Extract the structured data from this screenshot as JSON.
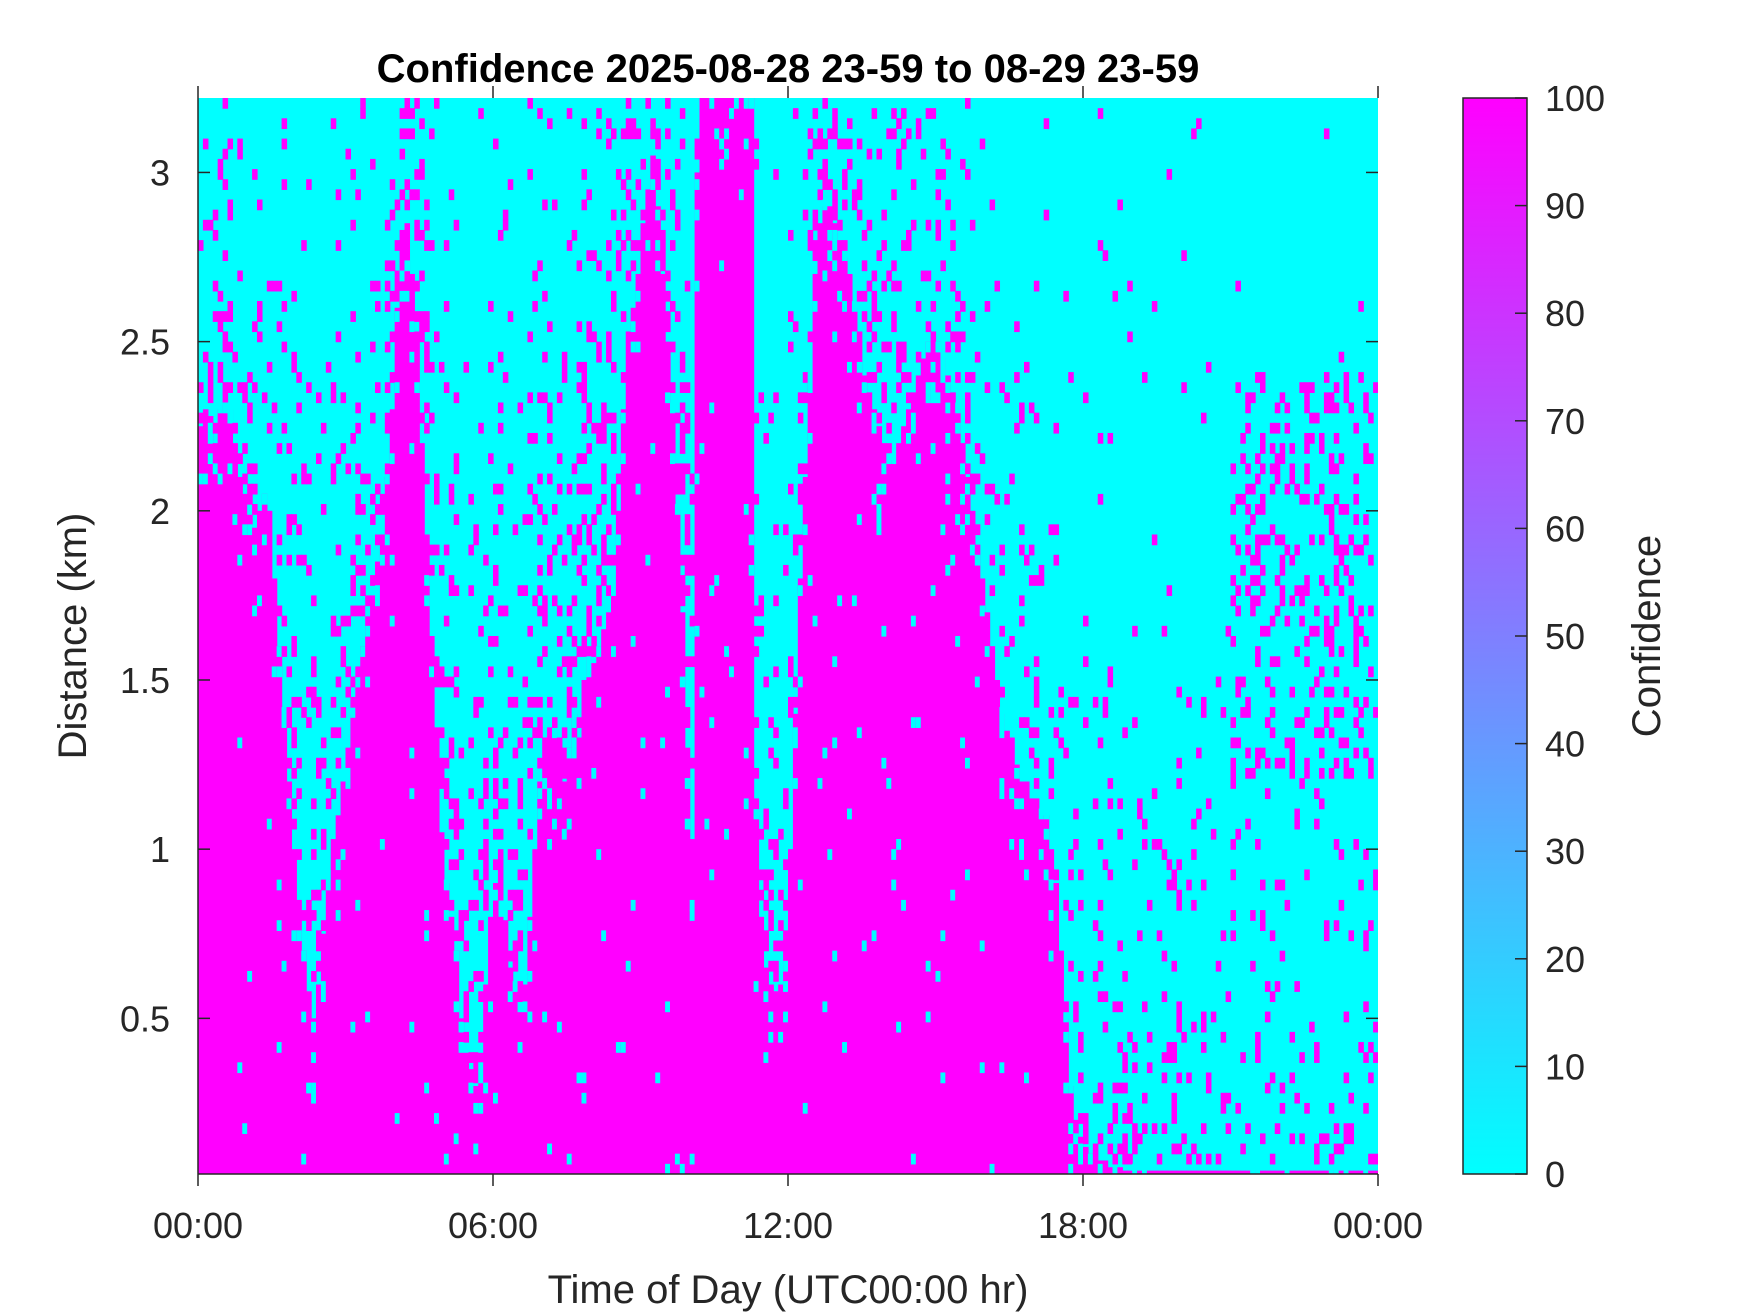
{
  "chart_data": {
    "type": "heatmap",
    "title": "Confidence 2025-08-28 23-59 to 08-29 23-59",
    "xlabel": "Time of Day (UTC00:00 hr)",
    "ylabel": "Distance (km)",
    "xlim_hours": [
      0,
      24
    ],
    "ylim_km": [
      0.04,
      3.22
    ],
    "x_ticks": [
      {
        "value": 0,
        "label": "00:00"
      },
      {
        "value": 6,
        "label": "06:00"
      },
      {
        "value": 12,
        "label": "12:00"
      },
      {
        "value": 18,
        "label": "18:00"
      },
      {
        "value": 24,
        "label": "00:00"
      }
    ],
    "y_ticks": [
      {
        "value": 0.5,
        "label": "0.5"
      },
      {
        "value": 1,
        "label": "1"
      },
      {
        "value": 1.5,
        "label": "1.5"
      },
      {
        "value": 2,
        "label": "2"
      },
      {
        "value": 2.5,
        "label": "2.5"
      },
      {
        "value": 3,
        "label": "3"
      }
    ],
    "colorbar": {
      "label": "Confidence",
      "range": [
        0,
        100
      ],
      "ticks": [
        0,
        10,
        20,
        30,
        40,
        50,
        60,
        70,
        80,
        90,
        100
      ],
      "colormap": [
        "#00ffff",
        "#ff00ff"
      ]
    },
    "grid": false,
    "time_step_hours": 0.1,
    "high_confidence_value": 100,
    "low_confidence_value": 0,
    "high_confidence_top_km": [
      2.25,
      2.3,
      2.28,
      2.2,
      2.3,
      2.35,
      2.3,
      2.2,
      2.1,
      2.05,
      2.0,
      1.95,
      2.0,
      2.05,
      2.0,
      1.8,
      1.6,
      1.4,
      1.2,
      1.0,
      0.85,
      0.7,
      0.55,
      0.5,
      0.6,
      0.75,
      0.9,
      1.0,
      1.1,
      1.2,
      1.3,
      1.4,
      1.5,
      1.6,
      1.7,
      1.75,
      1.85,
      1.9,
      2.1,
      2.3,
      2.6,
      2.8,
      2.85,
      2.7,
      2.5,
      2.2,
      1.9,
      1.6,
      1.3,
      1.05,
      0.9,
      0.8,
      0.7,
      0.5,
      0.4,
      0.35,
      0.3,
      0.4,
      0.6,
      0.8,
      0.9,
      0.8,
      0.7,
      0.65,
      0.6,
      0.55,
      0.6,
      0.8,
      1.0,
      1.2,
      1.3,
      1.3,
      1.35,
      1.3,
      1.2,
      1.3,
      1.4,
      1.3,
      1.5,
      1.6,
      1.55,
      1.6,
      1.65,
      1.7,
      1.8,
      2.0,
      2.3,
      2.5,
      2.6,
      2.7,
      2.85,
      2.95,
      3.05,
      2.9,
      2.7,
      2.5,
      2.3,
      2.0,
      1.7,
      1.3,
      1.0,
      3.0,
      3.22,
      3.22,
      3.22,
      3.22,
      3.22,
      3.22,
      3.22,
      3.22,
      3.22,
      3.22,
      3.22,
      1.1,
      0.8,
      0.65,
      0.6,
      0.55,
      0.6,
      0.7,
      1.0,
      1.4,
      1.8,
      2.1,
      2.4,
      2.7,
      2.85,
      2.9,
      2.9,
      2.85,
      2.8,
      2.75,
      2.7,
      2.6,
      2.5,
      2.4,
      2.35,
      2.3,
      2.25,
      2.2,
      2.2,
      2.15,
      2.2,
      2.25,
      2.3,
      2.35,
      2.4,
      2.45,
      2.5,
      2.5,
      2.5,
      2.45,
      2.4,
      2.35,
      2.3,
      2.2,
      2.1,
      2.0,
      1.9,
      1.8,
      1.7,
      1.6,
      1.5,
      1.4,
      1.35,
      1.3,
      1.25,
      1.2,
      1.2,
      1.15,
      1.15,
      1.1,
      1.1,
      1.0,
      0.9,
      0.7,
      0.5,
      0.3,
      0.2,
      0.15,
      0.12,
      0.1,
      0.1,
      0.08,
      0.08,
      0.06,
      0.06,
      0.06,
      0.05,
      0.05,
      0.05,
      0.05,
      0.05,
      0.05,
      0.05,
      0.05,
      0.05,
      0.05,
      0.05,
      0.05,
      0.05,
      0.05,
      0.05,
      0.05,
      0.05,
      0.05,
      0.05,
      0.05,
      0.05,
      0.05,
      0.05,
      0.05,
      0.05,
      0.05,
      0.05,
      0.05,
      0.05,
      0.05,
      0.05,
      0.05,
      0.05,
      0.05,
      0.05,
      0.05,
      0.05,
      0.05,
      0.05,
      0.05,
      0.05,
      0.05,
      0.05,
      0.05,
      0.05,
      0.05,
      0.05,
      0.05,
      0.05,
      0.05,
      0.05,
      0.05
    ],
    "scatter_fraction_above_top": [
      0.25,
      0.25,
      0.25,
      0.25,
      0.25,
      0.25,
      0.25,
      0.25,
      0.25,
      0.25,
      0.25,
      0.25,
      0.25,
      0.25,
      0.25,
      0.25,
      0.25,
      0.25,
      0.25,
      0.25,
      0.3,
      0.3,
      0.3,
      0.3,
      0.3,
      0.3,
      0.3,
      0.3,
      0.3,
      0.3,
      0.3,
      0.3,
      0.3,
      0.3,
      0.3,
      0.3,
      0.3,
      0.3,
      0.3,
      0.3,
      0.35,
      0.35,
      0.35,
      0.35,
      0.35,
      0.35,
      0.35,
      0.35,
      0.35,
      0.35,
      0.35,
      0.35,
      0.35,
      0.35,
      0.35,
      0.35,
      0.35,
      0.35,
      0.35,
      0.35,
      0.35,
      0.35,
      0.35,
      0.35,
      0.35,
      0.35,
      0.35,
      0.35,
      0.35,
      0.35,
      0.4,
      0.4,
      0.4,
      0.4,
      0.4,
      0.4,
      0.4,
      0.4,
      0.4,
      0.4,
      0.4,
      0.4,
      0.4,
      0.4,
      0.4,
      0.4,
      0.4,
      0.4,
      0.4,
      0.4,
      0.4,
      0.4,
      0.4,
      0.4,
      0.4,
      0.4,
      0.4,
      0.4,
      0.4,
      0.4,
      0.4,
      0.4,
      0.4,
      0.4,
      0.4,
      0.4,
      0.4,
      0.4,
      0.4,
      0.4,
      0.4,
      0.4,
      0.4,
      0.3,
      0.3,
      0.3,
      0.3,
      0.3,
      0.3,
      0.3,
      0.3,
      0.3,
      0.3,
      0.3,
      0.3,
      0.3,
      0.3,
      0.3,
      0.3,
      0.3,
      0.3,
      0.3,
      0.3,
      0.3,
      0.3,
      0.3,
      0.3,
      0.3,
      0.3,
      0.3,
      0.3,
      0.3,
      0.2,
      0.2,
      0.2,
      0.2,
      0.2,
      0.2,
      0.2,
      0.2,
      0.2,
      0.2,
      0.2,
      0.2,
      0.2,
      0.2,
      0.2,
      0.2,
      0.2,
      0.2,
      0.2,
      0.2,
      0.2,
      0.2,
      0.2,
      0.2,
      0.2,
      0.2,
      0.2,
      0.2,
      0.2,
      0.2,
      0.2,
      0.2,
      0.2,
      0.2,
      0.2,
      0.2,
      0.2,
      0.2,
      0.2,
      0.2,
      0.25,
      0.25,
      0.25,
      0.25,
      0.25,
      0.25,
      0.25,
      0.25,
      0.25,
      0.25,
      0.18,
      0.18,
      0.18,
      0.18,
      0.18,
      0.18,
      0.18,
      0.18,
      0.18,
      0.18,
      0.12,
      0.12,
      0.12,
      0.12,
      0.12,
      0.12,
      0.12,
      0.12,
      0.12,
      0.12,
      0.12,
      0.12,
      0.12,
      0.12,
      0.12,
      0.12,
      0.12,
      0.12,
      0.12,
      0.12,
      0.15,
      0.15,
      0.15,
      0.15,
      0.15,
      0.15,
      0.15,
      0.15,
      0.15,
      0.15,
      0.15,
      0.15,
      0.15,
      0.15,
      0.15,
      0.15,
      0.15,
      0.15,
      0.15,
      0.15,
      0.15,
      0.15,
      0.15,
      0.15,
      0.15,
      0.15,
      0.15,
      0.15,
      0.15,
      0.15
    ],
    "late_day_speckle_band_km": [
      1.2,
      2.4
    ],
    "late_day_speckle_hours": [
      21.0,
      23.9
    ]
  }
}
